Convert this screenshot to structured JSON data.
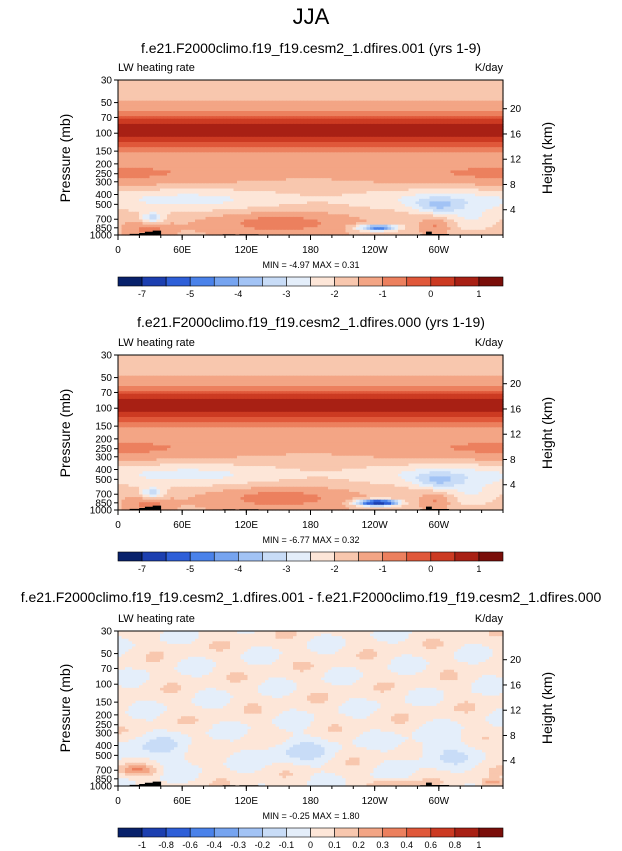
{
  "figure_title": "JJA",
  "chart_data": [
    {
      "type": "heatmap",
      "title": "f.e21.F2000climo.f19_f19.cesm2_1.dfires.001 (yrs 1-9)",
      "left_label": "LW heating rate",
      "right_label": "K/day",
      "ylabel": "Pressure (mb)",
      "ylabel_right": "Height (km)",
      "x_ticks": [
        "0",
        "60E",
        "120E",
        "180",
        "120W",
        "60W"
      ],
      "y_ticks": [
        "30",
        "50",
        "70",
        "100",
        "150",
        "200",
        "250",
        "300",
        "400",
        "500",
        "700",
        "850",
        "1000"
      ],
      "height_ticks": [
        "20",
        "16",
        "12",
        "8",
        "4"
      ],
      "stats": "MIN = -4.97   MAX = 0.31",
      "colorbar_labels": [
        "-7",
        "-5",
        "-4",
        "-3",
        "-2",
        "-1",
        "0",
        "1"
      ],
      "min": -4.97,
      "max": 0.31
    },
    {
      "type": "heatmap",
      "title": "f.e21.F2000climo.f19_f19.cesm2_1.dfires.000 (yrs 1-19)",
      "left_label": "LW heating rate",
      "right_label": "K/day",
      "ylabel": "Pressure (mb)",
      "ylabel_right": "Height (km)",
      "x_ticks": [
        "0",
        "60E",
        "120E",
        "180",
        "120W",
        "60W"
      ],
      "y_ticks": [
        "30",
        "50",
        "70",
        "100",
        "150",
        "200",
        "250",
        "300",
        "400",
        "500",
        "700",
        "850",
        "1000"
      ],
      "height_ticks": [
        "20",
        "16",
        "12",
        "8",
        "4"
      ],
      "stats": "MIN = -6.77   MAX = 0.32",
      "colorbar_labels": [
        "-7",
        "-5",
        "-4",
        "-3",
        "-2",
        "-1",
        "0",
        "1"
      ],
      "min": -6.77,
      "max": 0.32
    },
    {
      "type": "heatmap",
      "title": "f.e21.F2000climo.f19_f19.cesm2_1.dfires.001 - f.e21.F2000climo.f19_f19.cesm2_1.dfires.000",
      "left_label": "LW heating rate",
      "right_label": "K/day",
      "ylabel": "Pressure (mb)",
      "ylabel_right": "Height (km)",
      "x_ticks": [
        "0",
        "60E",
        "120E",
        "180",
        "120W",
        "60W"
      ],
      "y_ticks": [
        "30",
        "50",
        "70",
        "100",
        "150",
        "200",
        "250",
        "300",
        "400",
        "500",
        "700",
        "850",
        "1000"
      ],
      "height_ticks": [
        "20",
        "16",
        "12",
        "8",
        "4"
      ],
      "stats": "MIN = -0.25   MAX = 1.80",
      "colorbar_labels": [
        "-1",
        "-0.8",
        "-0.6",
        "-0.4",
        "-0.3",
        "-0.2",
        "-0.1",
        "0",
        "0.1",
        "0.2",
        "0.3",
        "0.4",
        "0.6",
        "0.8",
        "1"
      ],
      "min": -0.25,
      "max": 1.8
    }
  ],
  "colors": {
    "full_palette": [
      "#08216b",
      "#1c3fb0",
      "#2e5fd8",
      "#4a82ea",
      "#76a4f0",
      "#a2c3f5",
      "#c8dcf7",
      "#e4eefa",
      "#fde6d8",
      "#f8c7ae",
      "#f3a585",
      "#ec805e",
      "#e0583a",
      "#cc3a22",
      "#a82014",
      "#7a0e0a"
    ],
    "diff_palette": [
      "#08216b",
      "#1c3fb0",
      "#2e5fd8",
      "#4a82ea",
      "#76a4f0",
      "#a2c3f5",
      "#c8dcf7",
      "#e4eefa",
      "#fde6d8",
      "#f8c7ae",
      "#f3a585",
      "#ec805e",
      "#e0583a",
      "#cc3a22",
      "#a82014",
      "#7a0e0a"
    ],
    "topography": "#000000"
  }
}
